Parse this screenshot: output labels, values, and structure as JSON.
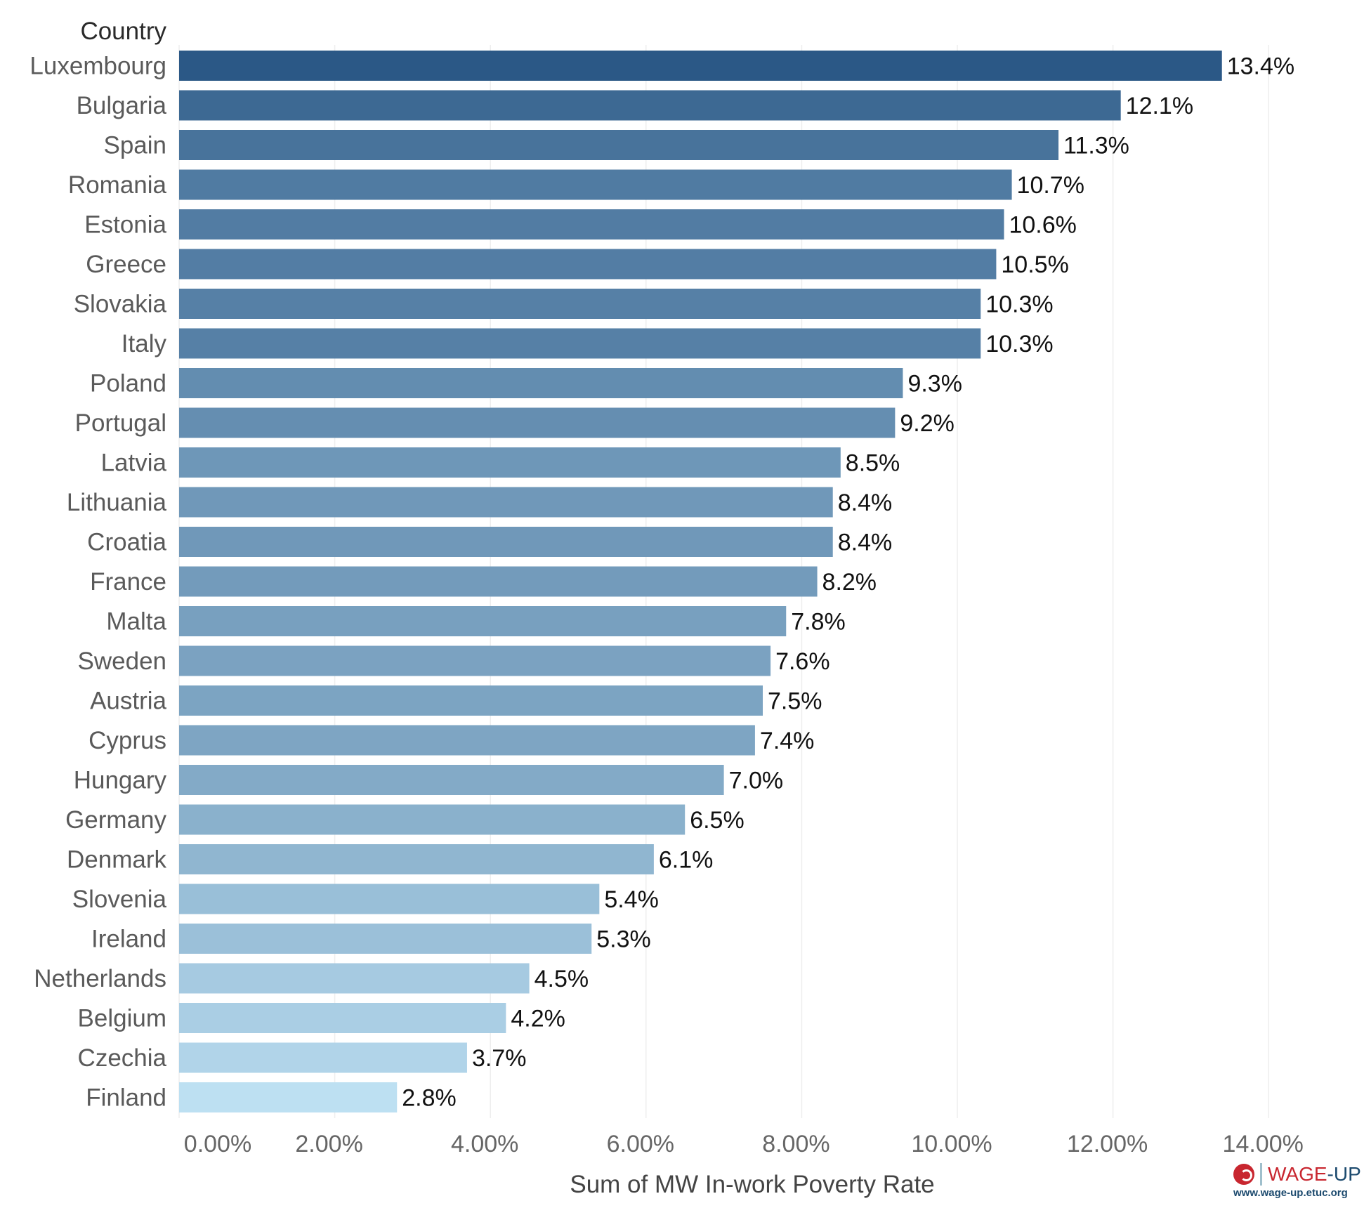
{
  "chart_data": {
    "type": "bar",
    "orientation": "horizontal",
    "category_header": "Country",
    "categories": [
      "Luxembourg",
      "Bulgaria",
      "Spain",
      "Romania",
      "Estonia",
      "Greece",
      "Slovakia",
      "Italy",
      "Poland",
      "Portugal",
      "Latvia",
      "Lithuania",
      "Croatia",
      "France",
      "Malta",
      "Sweden",
      "Austria",
      "Cyprus",
      "Hungary",
      "Germany",
      "Denmark",
      "Slovenia",
      "Ireland",
      "Netherlands",
      "Belgium",
      "Czechia",
      "Finland"
    ],
    "values": [
      13.4,
      12.1,
      11.3,
      10.7,
      10.6,
      10.5,
      10.3,
      10.3,
      9.3,
      9.2,
      8.5,
      8.4,
      8.4,
      8.2,
      7.8,
      7.6,
      7.5,
      7.4,
      7.0,
      6.5,
      6.1,
      5.4,
      5.3,
      4.5,
      4.2,
      3.7,
      2.8
    ],
    "value_labels": [
      "13.4%",
      "12.1%",
      "11.3%",
      "10.7%",
      "10.6%",
      "10.5%",
      "10.3%",
      "10.3%",
      "9.3%",
      "9.2%",
      "8.5%",
      "8.4%",
      "8.4%",
      "8.2%",
      "7.8%",
      "7.6%",
      "7.5%",
      "7.4%",
      "7.0%",
      "6.5%",
      "6.1%",
      "5.4%",
      "5.3%",
      "4.5%",
      "4.2%",
      "3.7%",
      "2.8%"
    ],
    "xlabel": "Sum of MW In-work Poverty Rate",
    "xlim": [
      0,
      15.5
    ],
    "xticks": [
      0,
      2,
      4,
      6,
      8,
      10,
      12,
      14
    ],
    "xtick_labels": [
      "0.00%",
      "2.00%",
      "4.00%",
      "6.00%",
      "8.00%",
      "10.00%",
      "12.00%",
      "14.00%"
    ],
    "grid": "vertical",
    "color_low": "#bde0f2",
    "color_high": "#2b5886"
  },
  "logo": {
    "name_part1": "WAGE",
    "name_part2": "-UP",
    "url": "www.wage-up.etuc.org"
  }
}
